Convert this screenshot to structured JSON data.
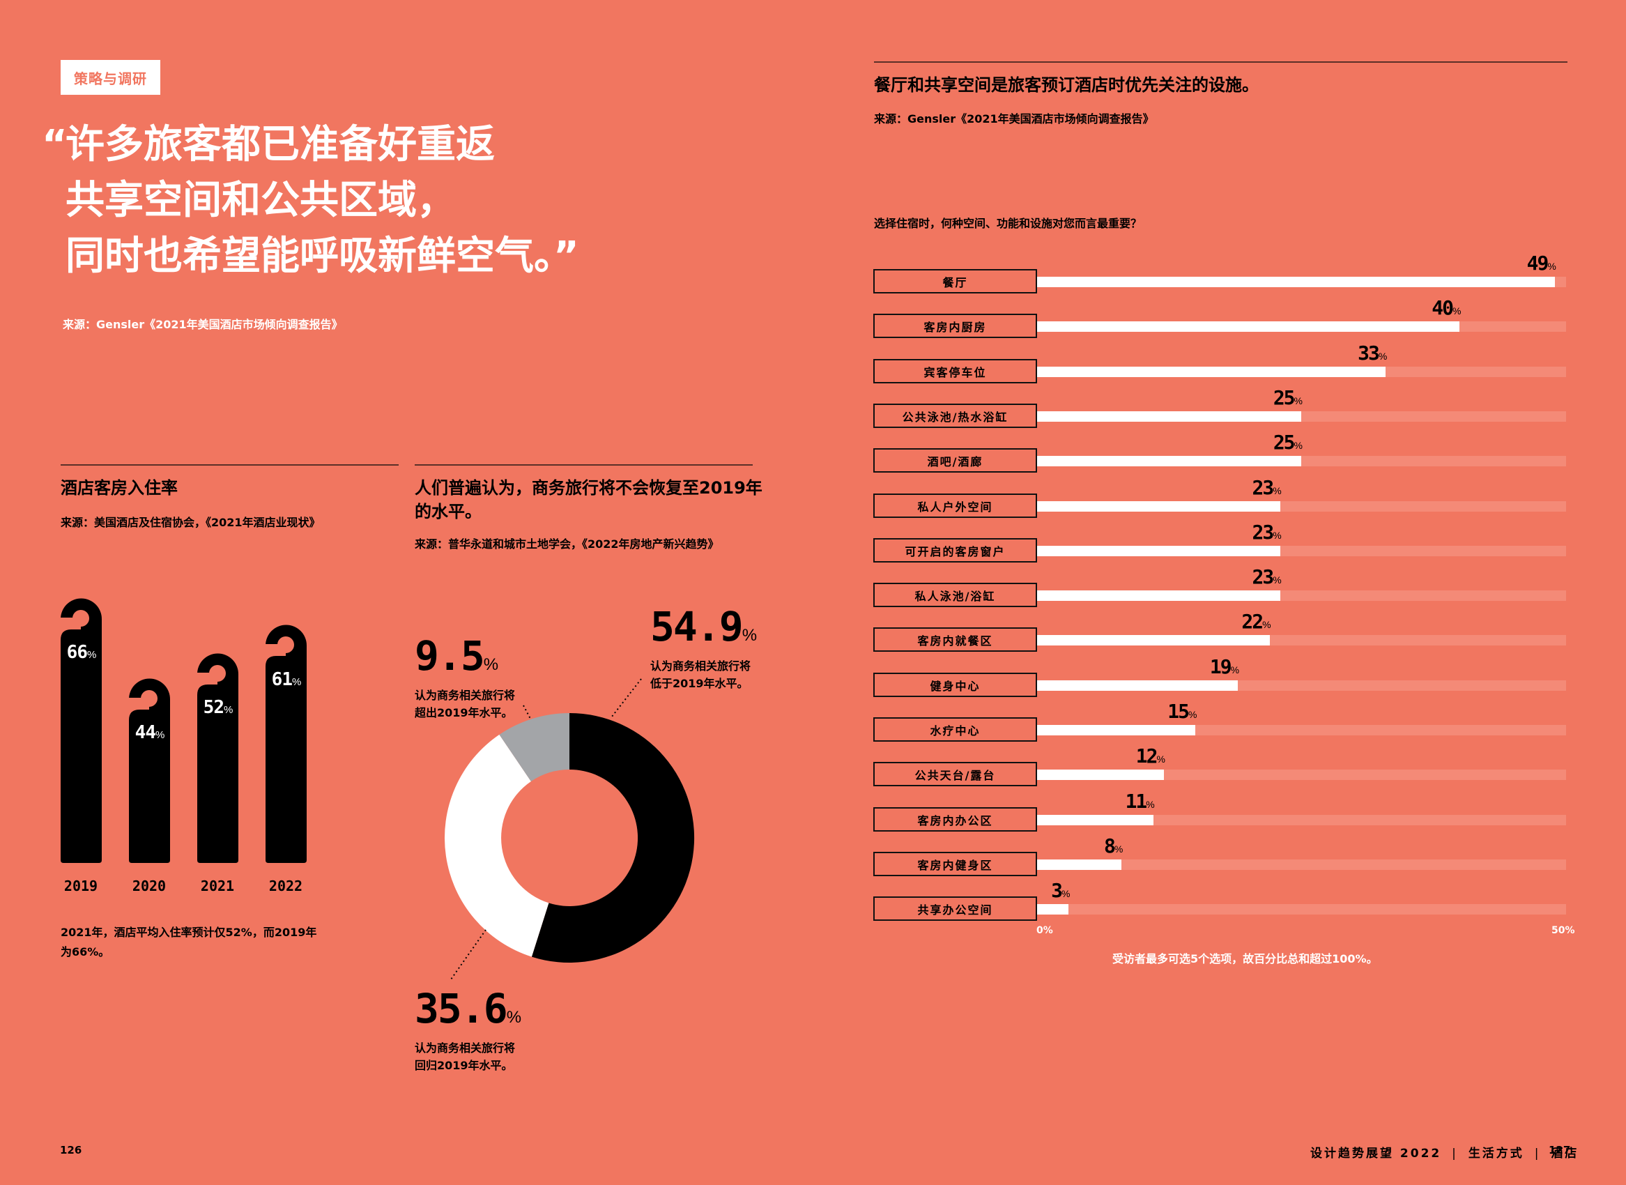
{
  "left_page": {
    "tag": "策略与调研",
    "quote": {
      "open_mark": "“",
      "lines": [
        "许多旅客都已准备好重返",
        "共享空间和公共区域，",
        "同时也希望能呼吸新鲜空气。”"
      ],
      "source": "来源：Gensler《2021年美国酒店市场倾向调查报告》"
    },
    "occupancy": {
      "title": "酒店客房入住率",
      "source": "来源：美国酒店及住宿协会，《2021年酒店业现状》",
      "bars": [
        {
          "year": "2019",
          "value": "66",
          "unit": "%"
        },
        {
          "year": "2020",
          "value": "44",
          "unit": "%"
        },
        {
          "year": "2021",
          "value": "52",
          "unit": "%"
        },
        {
          "year": "2022",
          "value": "61",
          "unit": "%"
        }
      ],
      "caption_lines": [
        "2021年，酒店平均入住率预计仅52%，而2019年",
        "为66%。"
      ]
    },
    "business_travel": {
      "title_lines": [
        "人们普遍认为，商务旅行将不会恢复至2019年",
        "的水平。"
      ],
      "source": "来源：普华永道和城市土地学会，《2022年房地产新兴趋势》",
      "segments": [
        {
          "value": "54.9",
          "unit": "%",
          "lines": [
            "认为商务相关旅行将",
            "低于2019年水平。"
          ],
          "color": "#000000"
        },
        {
          "value": "35.6",
          "unit": "%",
          "lines": [
            "认为商务相关旅行将",
            "回归2019年水平。"
          ],
          "color": "#FFFFFF"
        },
        {
          "value": "9.5",
          "unit": "%",
          "lines": [
            "认为商务相关旅行将",
            "超出2019年水平。"
          ],
          "color": "#A3A5A8"
        }
      ]
    },
    "page_number": "126"
  },
  "right_page": {
    "title": "餐厅和共享空间是旅客预订酒店时优先关注的设施。",
    "source": "来源：Gensler《2021年美国酒店市场倾向调查报告》",
    "question": "选择住宿时，何种空间、功能和设施对您而言最重要？",
    "rows": [
      {
        "label": "餐厅",
        "value": "49",
        "unit": "%"
      },
      {
        "label": "客房内厨房",
        "value": "40",
        "unit": "%"
      },
      {
        "label": "宾客停车位",
        "value": "33",
        "unit": "%"
      },
      {
        "label": "公共泳池/热水浴缸",
        "value": "25",
        "unit": "%"
      },
      {
        "label": "酒吧/酒廊",
        "value": "25",
        "unit": "%"
      },
      {
        "label": "私人户外空间",
        "value": "23",
        "unit": "%"
      },
      {
        "label": "可开启的客房窗户",
        "value": "23",
        "unit": "%"
      },
      {
        "label": "私人泳池/浴缸",
        "value": "23",
        "unit": "%"
      },
      {
        "label": "客房内就餐区",
        "value": "22",
        "unit": "%"
      },
      {
        "label": "健身中心",
        "value": "19",
        "unit": "%"
      },
      {
        "label": "水疗中心",
        "value": "15",
        "unit": "%"
      },
      {
        "label": "公共天台/露台",
        "value": "12",
        "unit": "%"
      },
      {
        "label": "客房内办公区",
        "value": "11",
        "unit": "%"
      },
      {
        "label": "客房内健身区",
        "value": "8",
        "unit": "%"
      },
      {
        "label": "共享办公空间",
        "value": "3",
        "unit": "%"
      }
    ],
    "axis": {
      "min_label": "0%",
      "max_label": "50%"
    },
    "footnote": "受访者最多可选5个选项，故百分比总和超过100%。",
    "footer": {
      "publication": "设计趋势展望 2022",
      "separator": "|",
      "section": "生活方式",
      "subsection": "酒店"
    },
    "page_number": "127"
  },
  "colors": {
    "background": "#F17660",
    "track": "#F48A77",
    "bar_fill": "#FFFFFF",
    "ink": "#000000",
    "gray_segment": "#A3A5A8"
  },
  "chart_data": [
    {
      "type": "bar",
      "title": "酒店客房入住率",
      "categories": [
        "2019",
        "2020",
        "2021",
        "2022"
      ],
      "values": [
        66,
        44,
        52,
        61
      ],
      "ylabel": "%",
      "ylim": [
        0,
        100
      ]
    },
    {
      "type": "pie",
      "title": "人们普遍认为，商务旅行将不会恢复至2019年的水平。",
      "categories": [
        "低于2019年水平",
        "回归2019年水平",
        "超出2019年水平"
      ],
      "values": [
        54.9,
        35.6,
        9.5
      ],
      "colors": [
        "#000000",
        "#FFFFFF",
        "#A3A5A8"
      ],
      "donut": true
    },
    {
      "type": "bar",
      "orientation": "horizontal",
      "title": "选择住宿时，何种空间、功能和设施对您而言最重要？",
      "categories": [
        "餐厅",
        "客房内厨房",
        "宾客停车位",
        "公共泳池/热水浴缸",
        "酒吧/酒廊",
        "私人户外空间",
        "可开启的客房窗户",
        "私人泳池/浴缸",
        "客房内就餐区",
        "健身中心",
        "水疗中心",
        "公共天台/露台",
        "客房内办公区",
        "客房内健身区",
        "共享办公空间"
      ],
      "values": [
        49,
        40,
        33,
        25,
        25,
        23,
        23,
        23,
        22,
        19,
        15,
        12,
        11,
        8,
        3
      ],
      "xlim": [
        0,
        50
      ],
      "xlabel": "%",
      "note": "受访者最多可选5个选项，故百分比总和超过100%。"
    }
  ]
}
